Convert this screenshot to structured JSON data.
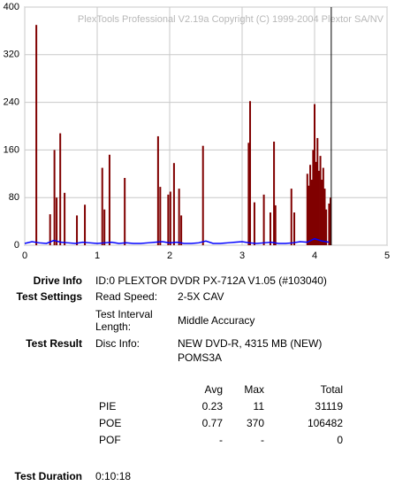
{
  "chart_data": {
    "type": "bar-line",
    "title": "PlexTools Professional V2.19a Copyright (C) 1999-2004 Plextor SA/NV",
    "xlim": [
      0,
      5
    ],
    "xticks": [
      0,
      1,
      2,
      3,
      4,
      5
    ],
    "ylim": [
      0,
      400
    ],
    "yticks": [
      0,
      80,
      160,
      240,
      320,
      400
    ],
    "grid": true,
    "end_marker": 4.23,
    "series": [
      {
        "type": "bar",
        "color": "#800000",
        "x": [
          0.16,
          0.35,
          0.41,
          0.44,
          0.49,
          0.55,
          0.72,
          0.83,
          1.07,
          1.1,
          1.17,
          1.38,
          1.84,
          1.87,
          1.98,
          2.01,
          2.06,
          2.13,
          2.16,
          2.46,
          3.09,
          3.11,
          3.17,
          3.3,
          3.39,
          3.44,
          3.46,
          3.68,
          3.72,
          3.9,
          3.92,
          3.94,
          3.96,
          3.98,
          4.0,
          4.02,
          4.04,
          4.06,
          4.08,
          4.1,
          4.12,
          4.14,
          4.16,
          4.2,
          4.22
        ],
        "values": [
          370,
          52,
          160,
          80,
          188,
          88,
          50,
          68,
          130,
          60,
          152,
          113,
          183,
          98,
          85,
          90,
          138,
          95,
          50,
          167,
          172,
          242,
          72,
          85,
          55,
          174,
          67,
          95,
          55,
          120,
          100,
          135,
          110,
          160,
          237,
          140,
          180,
          125,
          150,
          110,
          130,
          95,
          60,
          70,
          80
        ]
      },
      {
        "type": "line",
        "color": "#0000ff",
        "x": [
          0,
          0.1,
          0.2,
          0.3,
          0.4,
          0.5,
          0.6,
          0.7,
          0.8,
          0.9,
          1.0,
          1.1,
          1.2,
          1.3,
          1.4,
          1.5,
          1.6,
          1.7,
          1.8,
          1.9,
          2.0,
          2.1,
          2.2,
          2.3,
          2.4,
          2.5,
          2.6,
          2.7,
          2.8,
          2.9,
          3.0,
          3.1,
          3.2,
          3.3,
          3.4,
          3.5,
          3.6,
          3.7,
          3.8,
          3.9,
          4.0,
          4.1,
          4.2
        ],
        "values": [
          3,
          6,
          4,
          3,
          8,
          5,
          4,
          3,
          5,
          4,
          3,
          4,
          5,
          3,
          4,
          3,
          3,
          4,
          5,
          6,
          4,
          5,
          3,
          3,
          4,
          7,
          3,
          3,
          4,
          5,
          6,
          4,
          3,
          4,
          5,
          3,
          3,
          4,
          6,
          5,
          11,
          7,
          5
        ]
      }
    ]
  },
  "info": {
    "drive_info": {
      "label": "Drive Info",
      "value": "ID:0 PLEXTOR DVDR PX-712A V1.05 (#103040)"
    },
    "test_settings": {
      "label": "Test Settings",
      "read_speed": {
        "label": "Read Speed:",
        "value": "2-5X CAV"
      },
      "interval": {
        "label_1": "Test Interval",
        "label_2": "Length:",
        "value": "Middle Accuracy"
      }
    },
    "test_result": {
      "label": "Test Result",
      "disc_info": {
        "label": "Disc Info:",
        "value_1": "NEW DVD-R, 4315 MB (NEW)",
        "value_2": "POMS3A"
      }
    },
    "table": {
      "header": [
        "Avg",
        "Max",
        "Total"
      ],
      "rows": [
        [
          "PIE",
          "0.23",
          "11",
          "31119"
        ],
        [
          "POE",
          "0.77",
          "370",
          "106482"
        ],
        [
          "POF",
          "-",
          "-",
          "0"
        ]
      ]
    },
    "test_duration": {
      "label": "Test Duration",
      "value": "0:10:18"
    }
  }
}
